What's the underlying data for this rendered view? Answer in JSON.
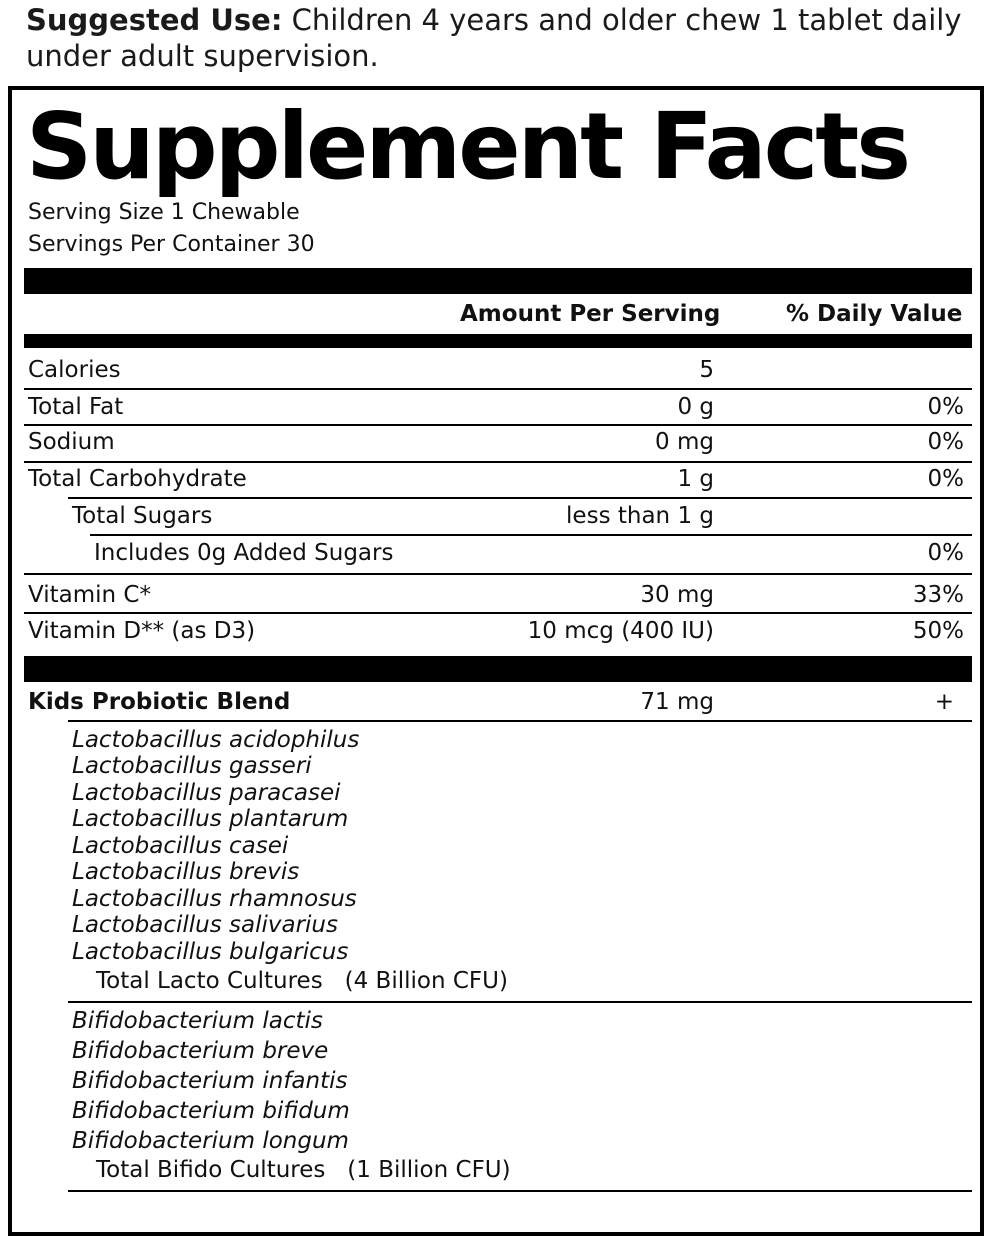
{
  "suggested_use": {
    "label": "Suggested Use:",
    "text": " Children 4 years and older chew 1 tablet daily under adult supervision."
  },
  "title": "Supplement Facts",
  "serving_size": "Serving Size 1 Chewable",
  "servings_per_container": "Servings Per Container 30",
  "headers": {
    "amount": "Amount Per Serving",
    "daily_value": "% Daily Value"
  },
  "nutrients": [
    {
      "label": "Calories",
      "amount": "5",
      "dv": ""
    },
    {
      "label": "Total Fat",
      "amount": "0 g",
      "dv": "0%"
    },
    {
      "label": "Sodium",
      "amount": "0 mg",
      "dv": "0%"
    },
    {
      "label": "Total Carbohydrate",
      "amount": "1 g",
      "dv": "0%"
    },
    {
      "label": "Total Sugars",
      "amount": "less than 1 g",
      "dv": ""
    },
    {
      "label": "Includes 0g Added Sugars",
      "amount": "",
      "dv": "0%"
    },
    {
      "label": "Vitamin C*",
      "amount": "30 mg",
      "dv": "33%"
    },
    {
      "label": "Vitamin D** (as D3)",
      "amount": "10 mcg (400 IU)",
      "dv": "50%"
    }
  ],
  "blend": {
    "label": "Kids Probiotic Blend",
    "amount": "71 mg",
    "dv": "+"
  },
  "lacto_strains": [
    "Lactobacillus acidophilus",
    "Lactobacillus gasseri",
    "Lactobacillus paracasei",
    "Lactobacillus plantarum",
    "Lactobacillus casei",
    "Lactobacillus brevis",
    "Lactobacillus rhamnosus",
    "Lactobacillus salivarius",
    "Lactobacillus bulgaricus"
  ],
  "lacto_total": "Total Lacto Cultures   (4 Billion CFU)",
  "bifido_strains": [
    "Bifidobacterium lactis",
    "Bifidobacterium breve",
    "Bifidobacterium infantis",
    "Bifidobacterium bifidum",
    "Bifidobacterium longum"
  ],
  "bifido_total": "Total Bifido Cultures   (1 Billion CFU)"
}
